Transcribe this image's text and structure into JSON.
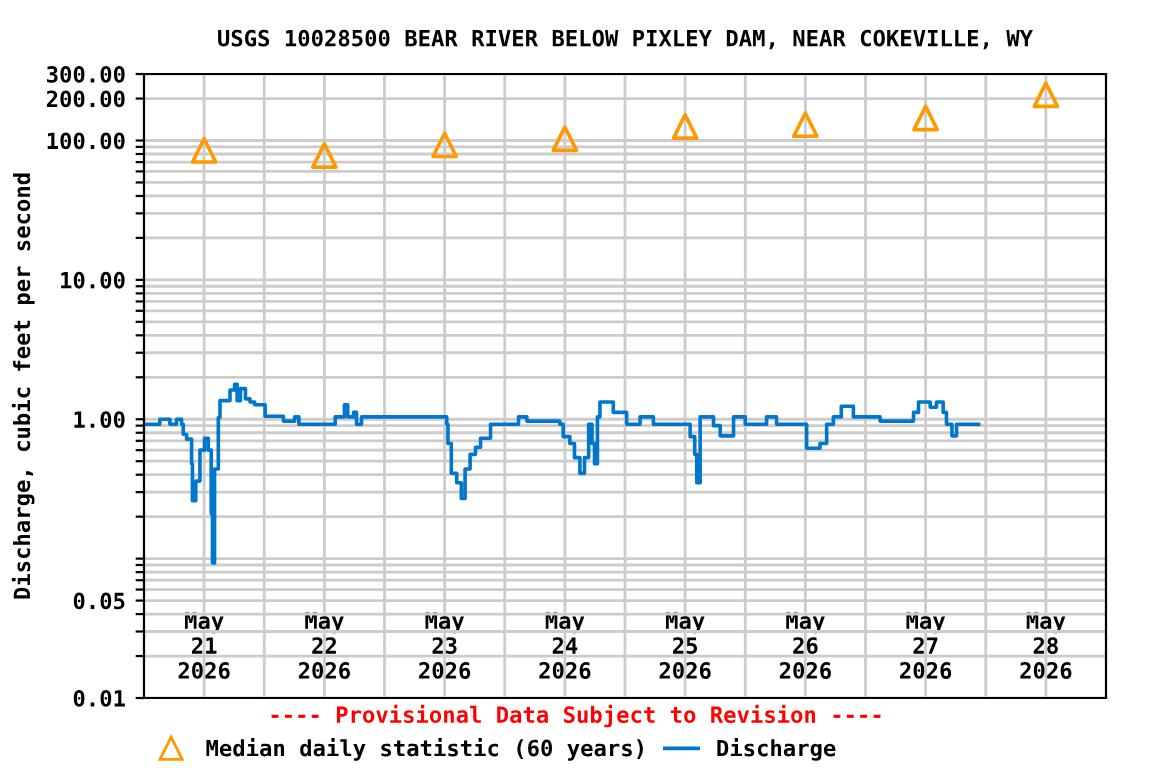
{
  "chart_data": {
    "type": "step",
    "title": "USGS 10028500 BEAR RIVER BELOW PIXLEY DAM, NEAR COKEVILLE, WY",
    "ylabel": "Discharge, cubic feet per second",
    "annotations": [
      "---- Provisional Data Subject to Revision ----"
    ],
    "log": "y",
    "grid": true,
    "legend": "bottom",
    "xlim": [
      "2026-05-21T00:00",
      "2026-05-29T00:00"
    ],
    "xticks": [
      {
        "value": "2026-05-21T12:00",
        "label": "May\n21\n2026"
      },
      {
        "value": "2026-05-22T12:00",
        "label": "May\n22\n2026"
      },
      {
        "value": "2026-05-23T12:00",
        "label": "May\n23\n2026"
      },
      {
        "value": "2026-05-24T12:00",
        "label": "May\n24\n2026"
      },
      {
        "value": "2026-05-25T12:00",
        "label": "May\n25\n2026"
      },
      {
        "value": "2026-05-26T12:00",
        "label": "May\n26\n2026"
      },
      {
        "value": "2026-05-27T12:00",
        "label": "May\n27\n2026"
      },
      {
        "value": "2026-05-28T12:00",
        "label": "May\n28\n2026"
      },
      {
        "value": "2026-05-22T00:00",
        "label": null
      },
      {
        "value": "2026-05-23T00:00",
        "label": null
      },
      {
        "value": "2026-05-24T00:00",
        "label": null
      },
      {
        "value": "2026-05-25T00:00",
        "label": null
      },
      {
        "value": "2026-05-26T00:00",
        "label": null
      },
      {
        "value": "2026-05-27T00:00",
        "label": null
      },
      {
        "value": "2026-05-28T00:00",
        "label": null
      }
    ],
    "ylim": [
      0.01,
      300
    ],
    "yticks": [
      {
        "value": 0.01,
        "label": "0.01"
      },
      {
        "value": 0.02,
        "label": null
      },
      {
        "value": 0.03,
        "label": null
      },
      {
        "value": 0.04,
        "label": null
      },
      {
        "value": 0.05,
        "label": "0.05"
      },
      {
        "value": 0.06,
        "label": null
      },
      {
        "value": 0.07,
        "label": null
      },
      {
        "value": 0.08,
        "label": null
      },
      {
        "value": 0.09,
        "label": null
      },
      {
        "value": 0.1,
        "label": null
      },
      {
        "value": 0.2,
        "label": null
      },
      {
        "value": 0.3,
        "label": null
      },
      {
        "value": 0.4,
        "label": null
      },
      {
        "value": 0.5,
        "label": null
      },
      {
        "value": 0.6,
        "label": null
      },
      {
        "value": 0.7,
        "label": null
      },
      {
        "value": 0.8,
        "label": null
      },
      {
        "value": 0.9,
        "label": null
      },
      {
        "value": 1,
        "label": "1.00"
      },
      {
        "value": 2,
        "label": null
      },
      {
        "value": 3,
        "label": null
      },
      {
        "value": 4,
        "label": null
      },
      {
        "value": 5,
        "label": null
      },
      {
        "value": 6,
        "label": null
      },
      {
        "value": 7,
        "label": null
      },
      {
        "value": 8,
        "label": null
      },
      {
        "value": 9,
        "label": null
      },
      {
        "value": 10,
        "label": "10.00"
      },
      {
        "value": 20,
        "label": null
      },
      {
        "value": 30,
        "label": null
      },
      {
        "value": 40,
        "label": null
      },
      {
        "value": 50,
        "label": null
      },
      {
        "value": 60,
        "label": null
      },
      {
        "value": 70,
        "label": null
      },
      {
        "value": 80,
        "label": null
      },
      {
        "value": 90,
        "label": null
      },
      {
        "value": 100,
        "label": "100.00"
      },
      {
        "value": 200,
        "label": "200.00"
      },
      {
        "value": 300,
        "label": "300.00"
      }
    ],
    "series": [
      {
        "name": "Median daily statistic (60 years)",
        "type": "scatter",
        "marker": "triangle",
        "color": "#ff9900",
        "x": [
          "2026-05-21T12:00",
          "2026-05-22T12:00",
          "2026-05-23T12:00",
          "2026-05-24T12:00",
          "2026-05-25T12:00",
          "2026-05-26T12:00",
          "2026-05-27T12:00",
          "2026-05-28T12:00"
        ],
        "values": [
          85,
          78,
          93,
          103,
          126,
          130,
          145,
          213
        ]
      },
      {
        "name": "Discharge",
        "color": "#0077cc",
        "x": [
          "2026-05-21T00:30",
          "2026-05-21T03:10",
          "2026-05-21T05:10",
          "2026-05-21T06:30",
          "2026-05-21T07:30",
          "2026-05-21T07:50",
          "2026-05-21T08:30",
          "2026-05-21T09:30",
          "2026-05-21T09:40",
          "2026-05-21T10:20",
          "2026-05-21T11:10",
          "2026-05-21T12:05",
          "2026-05-21T12:50",
          "2026-05-21T13:25",
          "2026-05-21T13:40",
          "2026-05-21T14:05",
          "2026-05-21T14:50",
          "2026-05-21T15:10",
          "2026-05-21T17:10",
          "2026-05-21T18:05",
          "2026-05-21T18:35",
          "2026-05-21T19:15",
          "2026-05-21T20:15",
          "2026-05-21T21:10",
          "2026-05-21T22:05",
          "2026-05-22T00:10",
          "2026-05-22T03:50",
          "2026-05-22T06:05",
          "2026-05-22T06:55",
          "2026-05-22T13:50",
          "2026-05-22T14:10",
          "2026-05-22T16:00",
          "2026-05-22T16:40",
          "2026-05-22T17:50",
          "2026-05-22T18:25",
          "2026-05-22T19:25",
          "2026-05-23T11:45",
          "2026-05-23T12:25",
          "2026-05-23T12:40",
          "2026-05-23T13:20",
          "2026-05-23T14:25",
          "2026-05-23T15:20",
          "2026-05-23T16:05",
          "2026-05-23T17:05",
          "2026-05-23T18:10",
          "2026-05-23T19:10",
          "2026-05-23T21:10",
          "2026-05-24T02:45",
          "2026-05-24T04:25",
          "2026-05-24T11:00",
          "2026-05-24T11:40",
          "2026-05-24T13:00",
          "2026-05-24T13:55",
          "2026-05-24T15:00",
          "2026-05-24T15:55",
          "2026-05-24T16:45",
          "2026-05-24T17:25",
          "2026-05-24T17:55",
          "2026-05-24T18:30",
          "2026-05-24T19:00",
          "2026-05-24T21:00",
          "2026-05-24T21:40",
          "2026-05-25T00:20",
          "2026-05-25T03:00",
          "2026-05-25T05:40",
          "2026-05-25T11:40",
          "2026-05-25T13:00",
          "2026-05-25T13:55",
          "2026-05-25T14:20",
          "2026-05-25T15:00",
          "2026-05-25T17:40",
          "2026-05-25T19:00",
          "2026-05-25T21:40",
          "2026-05-26T00:00",
          "2026-05-26T04:15",
          "2026-05-26T06:15",
          "2026-05-26T10:55",
          "2026-05-26T12:15",
          "2026-05-26T14:55",
          "2026-05-26T16:15",
          "2026-05-26T17:35",
          "2026-05-26T19:10",
          "2026-05-26T21:35",
          "2026-05-27T02:55",
          "2026-05-27T09:35",
          "2026-05-27T10:35",
          "2026-05-27T12:55",
          "2026-05-27T14:10",
          "2026-05-27T15:30",
          "2026-05-27T16:10",
          "2026-05-27T17:15",
          "2026-05-27T18:10",
          "2026-05-27T22:35"
        ],
        "values": [
          0.92,
          1.0,
          0.92,
          1.0,
          0.92,
          0.78,
          0.72,
          0.48,
          0.26,
          0.36,
          0.6,
          0.73,
          0.6,
          0.21,
          0.093,
          0.44,
          1.03,
          1.36,
          1.62,
          1.78,
          1.36,
          1.66,
          1.4,
          1.33,
          1.27,
          1.05,
          0.97,
          1.04,
          0.92,
          0.92,
          1.04,
          1.27,
          1.04,
          1.12,
          0.92,
          1.04,
          1.04,
          0.92,
          0.67,
          0.41,
          0.35,
          0.27,
          0.44,
          0.56,
          0.63,
          0.73,
          0.92,
          1.04,
          0.97,
          0.92,
          0.75,
          0.67,
          0.53,
          0.41,
          0.53,
          0.92,
          0.67,
          0.48,
          1.04,
          1.33,
          1.33,
          1.12,
          0.92,
          1.04,
          0.92,
          0.92,
          0.75,
          0.56,
          0.35,
          1.04,
          0.9,
          0.76,
          1.04,
          0.92,
          1.04,
          0.92,
          0.92,
          0.62,
          0.67,
          0.92,
          1.04,
          1.24,
          1.04,
          0.97,
          1.12,
          1.33,
          1.22,
          1.33,
          1.12,
          0.92,
          0.76,
          0.92,
          0.92
        ]
      }
    ]
  }
}
